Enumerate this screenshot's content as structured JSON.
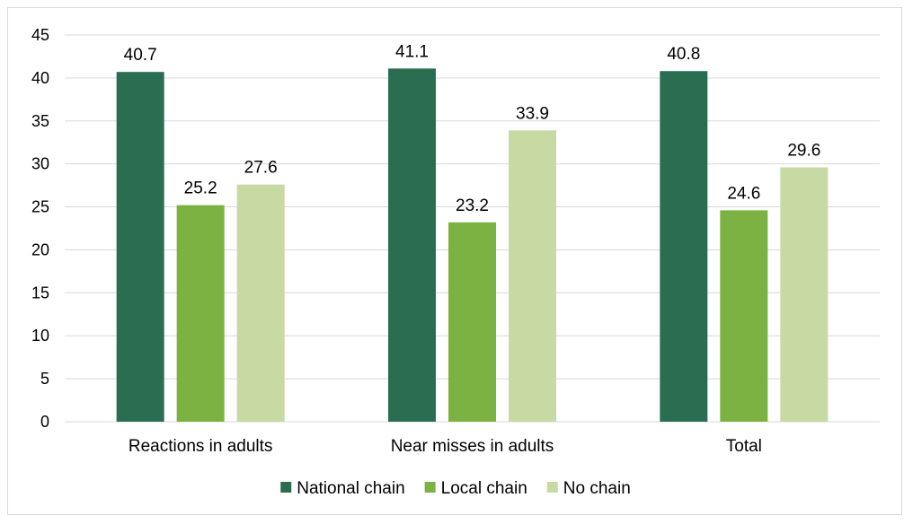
{
  "chart_data": {
    "type": "bar",
    "title": "",
    "xlabel": "",
    "ylabel": "",
    "categories": [
      "Reactions in adults",
      "Near misses in adults",
      "Total"
    ],
    "series": [
      {
        "name": "National chain",
        "values": [
          40.7,
          41.1,
          40.8
        ],
        "color": "#2a6e52"
      },
      {
        "name": "Local chain",
        "values": [
          25.2,
          23.2,
          24.6
        ],
        "color": "#7cb241"
      },
      {
        "name": "No chain",
        "values": [
          27.6,
          33.9,
          29.6
        ],
        "color": "#c8daa3"
      }
    ],
    "ylim": [
      0,
      45
    ],
    "yticks": [
      0,
      5,
      10,
      15,
      20,
      25,
      30,
      35,
      40,
      45
    ],
    "grid": true,
    "gridline_color": "#d9d9d9",
    "data_labels": true,
    "legend_position": "bottom"
  }
}
